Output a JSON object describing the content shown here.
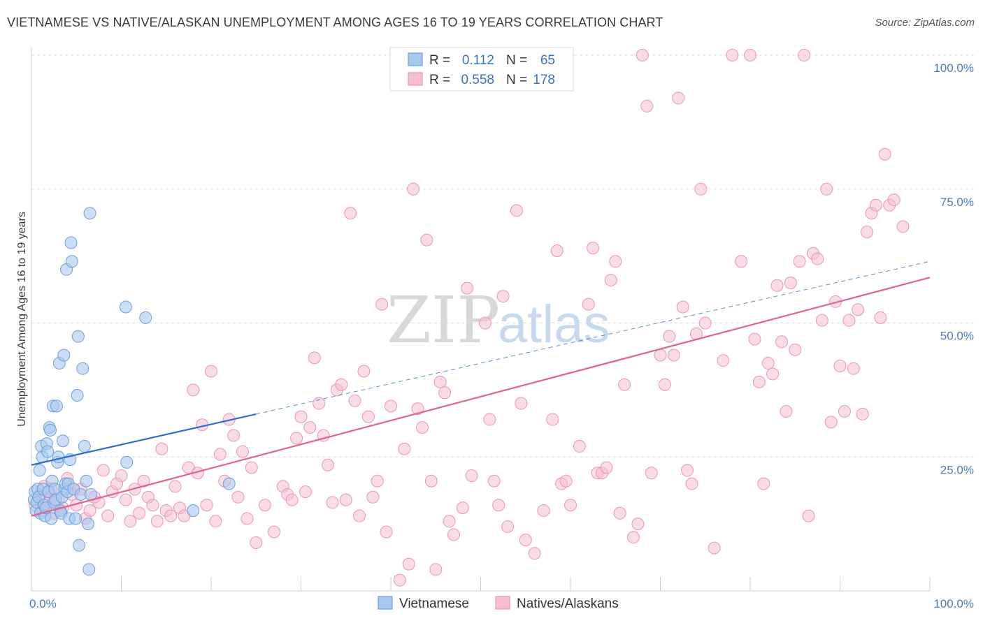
{
  "title": "VIETNAMESE VS NATIVE/ALASKAN UNEMPLOYMENT AMONG AGES 16 TO 19 YEARS CORRELATION CHART",
  "source": "Source: ZipAtlas.com",
  "colors": {
    "vietnamese_fill": "#a9c8ef",
    "vietnamese_stroke": "#6e9fdc",
    "vietnamese_line": "#2f6fcc",
    "natives_fill": "#f6bfd1",
    "natives_stroke": "#ec95b2",
    "natives_line": "#e0628e",
    "tick_label": "#4a7cc4",
    "grid": "#dddddd"
  },
  "stats": {
    "r_label": "R =",
    "n_label": "N =",
    "vietnamese": {
      "r": "0.112",
      "n": "65"
    },
    "natives": {
      "r": "0.558",
      "n": "178"
    }
  },
  "watermark": {
    "part1": "ZIP",
    "part2": "atlas"
  },
  "chart_data": {
    "type": "scatter",
    "title": "VIETNAMESE VS NATIVE/ALASKAN UNEMPLOYMENT AMONG AGES 16 TO 19 YEARS CORRELATION CHART",
    "xlabel": "",
    "ylabel": "Unemployment Among Ages 16 to 19 years",
    "xlim": [
      0,
      100
    ],
    "ylim": [
      0,
      102
    ],
    "x_tick_labels": [
      "0.0%",
      "100.0%"
    ],
    "y_ticks": [
      25,
      50,
      75,
      100
    ],
    "y_tick_labels": [
      "25.0%",
      "50.0%",
      "75.0%",
      "100.0%"
    ],
    "grid": true,
    "legend": [
      "Vietnamese",
      "Natives/Alaskans"
    ],
    "legend_position": "bottom-center",
    "series": [
      {
        "name": "Vietnamese",
        "trend": {
          "x": [
            0,
            25
          ],
          "y": [
            23.5,
            33
          ],
          "dashed_extension_to": [
            100,
            61.5
          ]
        },
        "points": [
          [
            0.3,
            17
          ],
          [
            0.4,
            18.5
          ],
          [
            0.5,
            15
          ],
          [
            0.6,
            16.5
          ],
          [
            0.7,
            19
          ],
          [
            0.8,
            17.5
          ],
          [
            0.9,
            22.5
          ],
          [
            1.0,
            14.5
          ],
          [
            1.1,
            27
          ],
          [
            1.2,
            25
          ],
          [
            1.3,
            19
          ],
          [
            1.4,
            16
          ],
          [
            1.5,
            14
          ],
          [
            1.6,
            15.5
          ],
          [
            1.7,
            27.5
          ],
          [
            1.8,
            26
          ],
          [
            1.9,
            18.5
          ],
          [
            2.0,
            30.5
          ],
          [
            2.1,
            30
          ],
          [
            2.2,
            13.5
          ],
          [
            2.3,
            20.5
          ],
          [
            2.4,
            34.5
          ],
          [
            2.5,
            16.5
          ],
          [
            2.6,
            19
          ],
          [
            2.7,
            17
          ],
          [
            2.8,
            34.5
          ],
          [
            2.9,
            24
          ],
          [
            3.0,
            25
          ],
          [
            3.1,
            42.5
          ],
          [
            3.2,
            15
          ],
          [
            3.3,
            14.5
          ],
          [
            3.4,
            17.5
          ],
          [
            3.5,
            28
          ],
          [
            3.6,
            44
          ],
          [
            3.7,
            19
          ],
          [
            3.8,
            20
          ],
          [
            3.9,
            60
          ],
          [
            4.0,
            18.5
          ],
          [
            4.1,
            20
          ],
          [
            4.2,
            13.5
          ],
          [
            4.3,
            24.5
          ],
          [
            4.4,
            65
          ],
          [
            4.5,
            61.5
          ],
          [
            4.7,
            19
          ],
          [
            4.9,
            13.5
          ],
          [
            5.1,
            36.5
          ],
          [
            5.2,
            47.5
          ],
          [
            5.3,
            8.5
          ],
          [
            5.5,
            18
          ],
          [
            5.7,
            41.5
          ],
          [
            5.9,
            27
          ],
          [
            6.1,
            20.5
          ],
          [
            6.3,
            12.5
          ],
          [
            6.4,
            4
          ],
          [
            6.5,
            70.5
          ],
          [
            6.6,
            18
          ],
          [
            10.5,
            53
          ],
          [
            10.6,
            24
          ],
          [
            12.7,
            51
          ],
          [
            18,
            15
          ],
          [
            22,
            20
          ]
        ]
      },
      {
        "name": "Natives/Alaskans",
        "trend": {
          "x": [
            0,
            100
          ],
          "y": [
            14,
            58.5
          ]
        },
        "points": [
          [
            0.4,
            16
          ],
          [
            0.8,
            17.5
          ],
          [
            1.0,
            18
          ],
          [
            1.2,
            15
          ],
          [
            1.4,
            19.5
          ],
          [
            1.6,
            17
          ],
          [
            1.8,
            18.5
          ],
          [
            2.0,
            16.5
          ],
          [
            2.2,
            19
          ],
          [
            2.5,
            14.5
          ],
          [
            3.0,
            17
          ],
          [
            3.5,
            15.5
          ],
          [
            4.0,
            21
          ],
          [
            4.5,
            18
          ],
          [
            5.0,
            16
          ],
          [
            5.5,
            19
          ],
          [
            6.0,
            13.5
          ],
          [
            6.5,
            15
          ],
          [
            7.0,
            17.5
          ],
          [
            7.5,
            16.5
          ],
          [
            8.0,
            22.5
          ],
          [
            8.5,
            14
          ],
          [
            9.0,
            18.5
          ],
          [
            9.5,
            20
          ],
          [
            10.0,
            21.5
          ],
          [
            10.5,
            17
          ],
          [
            11.0,
            13
          ],
          [
            11.5,
            19
          ],
          [
            12.0,
            14.5
          ],
          [
            12.5,
            20.5
          ],
          [
            13.0,
            17.5
          ],
          [
            13.5,
            16
          ],
          [
            14.0,
            13
          ],
          [
            14.5,
            26.5
          ],
          [
            15.0,
            15
          ],
          [
            15.5,
            14
          ],
          [
            16.0,
            19.5
          ],
          [
            16.5,
            15.5
          ],
          [
            17.0,
            14
          ],
          [
            17.5,
            23
          ],
          [
            18.0,
            37.5
          ],
          [
            18.5,
            22
          ],
          [
            19.0,
            31
          ],
          [
            19.5,
            16
          ],
          [
            20.0,
            41
          ],
          [
            20.5,
            13
          ],
          [
            21.0,
            25.5
          ],
          [
            21.5,
            20.5
          ],
          [
            22.0,
            32
          ],
          [
            22.5,
            29
          ],
          [
            23.0,
            17.5
          ],
          [
            23.5,
            26
          ],
          [
            24.0,
            13.5
          ],
          [
            24.5,
            23
          ],
          [
            25.0,
            9
          ],
          [
            26.0,
            16
          ],
          [
            27.0,
            11
          ],
          [
            28.0,
            19.5
          ],
          [
            28.5,
            18
          ],
          [
            29.0,
            17
          ],
          [
            29.5,
            28.5
          ],
          [
            30.0,
            32.5
          ],
          [
            30.5,
            18.5
          ],
          [
            31.0,
            30.5
          ],
          [
            31.5,
            43.5
          ],
          [
            32.0,
            35
          ],
          [
            32.5,
            29
          ],
          [
            33.0,
            23.5
          ],
          [
            33.5,
            16.5
          ],
          [
            34.0,
            37.5
          ],
          [
            34.5,
            38.5
          ],
          [
            35.0,
            17
          ],
          [
            35.5,
            70.5
          ],
          [
            36.0,
            35.5
          ],
          [
            36.5,
            14
          ],
          [
            37.0,
            41
          ],
          [
            37.5,
            32.5
          ],
          [
            38.0,
            17.5
          ],
          [
            38.5,
            20.5
          ],
          [
            39.0,
            53.5
          ],
          [
            39.5,
            11
          ],
          [
            40.0,
            34.5
          ],
          [
            41.0,
            2
          ],
          [
            41.5,
            26.5
          ],
          [
            42.0,
            5
          ],
          [
            42.5,
            75
          ],
          [
            43.0,
            34
          ],
          [
            43.5,
            30.5
          ],
          [
            44.0,
            65.5
          ],
          [
            44.5,
            20.5
          ],
          [
            45.0,
            4
          ],
          [
            45.5,
            39
          ],
          [
            46.0,
            37
          ],
          [
            46.5,
            13
          ],
          [
            47.0,
            10.5
          ],
          [
            48.0,
            15.5
          ],
          [
            48.5,
            56.5
          ],
          [
            49.0,
            21.5
          ],
          [
            50.0,
            100
          ],
          [
            50.5,
            50
          ],
          [
            51.0,
            32
          ],
          [
            51.5,
            20.5
          ],
          [
            52.0,
            16
          ],
          [
            52.5,
            55
          ],
          [
            53.0,
            12
          ],
          [
            54.0,
            71
          ],
          [
            54.5,
            35
          ],
          [
            55.0,
            9.5
          ],
          [
            56.0,
            7
          ],
          [
            57.0,
            15
          ],
          [
            58.0,
            32
          ],
          [
            58.5,
            63.5
          ],
          [
            59.0,
            20
          ],
          [
            59.5,
            20.5
          ],
          [
            60.0,
            16
          ],
          [
            61.0,
            27
          ],
          [
            62.0,
            53.5
          ],
          [
            62.5,
            64
          ],
          [
            63.0,
            22
          ],
          [
            63.5,
            22
          ],
          [
            64.0,
            23
          ],
          [
            64.5,
            58
          ],
          [
            65.0,
            61.5
          ],
          [
            65.5,
            14.5
          ],
          [
            66.0,
            38.5
          ],
          [
            67.0,
            10
          ],
          [
            67.5,
            12.5
          ],
          [
            68.0,
            100
          ],
          [
            68.5,
            90.5
          ],
          [
            69.0,
            22
          ],
          [
            70.0,
            44
          ],
          [
            70.5,
            38.5
          ],
          [
            71.0,
            47.5
          ],
          [
            71.5,
            44
          ],
          [
            72.0,
            92
          ],
          [
            72.5,
            53
          ],
          [
            73.0,
            22.5
          ],
          [
            73.5,
            20
          ],
          [
            74.0,
            48
          ],
          [
            74.5,
            75
          ],
          [
            75.0,
            50
          ],
          [
            76.0,
            8
          ],
          [
            77.0,
            43
          ],
          [
            78.0,
            100
          ],
          [
            79.0,
            61.5
          ],
          [
            80.0,
            100
          ],
          [
            80.5,
            47
          ],
          [
            81.0,
            39
          ],
          [
            81.5,
            20
          ],
          [
            82.0,
            42.5
          ],
          [
            82.5,
            40.5
          ],
          [
            83.0,
            57
          ],
          [
            83.5,
            46.5
          ],
          [
            84.0,
            33.5
          ],
          [
            84.5,
            57.5
          ],
          [
            85.0,
            45
          ],
          [
            85.5,
            61.5
          ],
          [
            86.0,
            100
          ],
          [
            86.5,
            14
          ],
          [
            87.0,
            63
          ],
          [
            87.5,
            62
          ],
          [
            88.0,
            50.5
          ],
          [
            88.5,
            75
          ],
          [
            89.0,
            31.5
          ],
          [
            89.5,
            54
          ],
          [
            90.0,
            42
          ],
          [
            90.5,
            33.5
          ],
          [
            91.0,
            50.5
          ],
          [
            91.5,
            41.5
          ],
          [
            92.0,
            52.5
          ],
          [
            92.5,
            33
          ],
          [
            93.0,
            67
          ],
          [
            93.5,
            70.5
          ],
          [
            94.0,
            72
          ],
          [
            94.5,
            51
          ],
          [
            95.0,
            81.5
          ],
          [
            95.5,
            72
          ],
          [
            96.0,
            73
          ],
          [
            97.0,
            68
          ]
        ]
      }
    ]
  }
}
